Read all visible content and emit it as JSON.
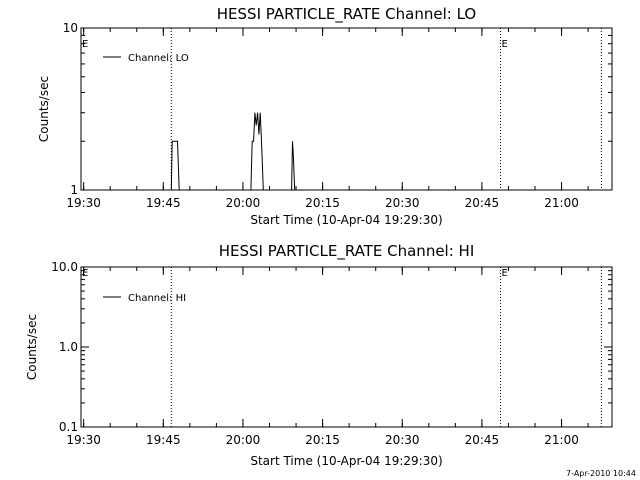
{
  "footer": {
    "timestamp": "7-Apr-2010 10:44"
  },
  "chart_data": [
    {
      "type": "line",
      "title": "HESSI PARTICLE_RATE Channel: LO",
      "xlabel": "Start Time (10-Apr-04 19:29:30)",
      "ylabel": "Counts/sec",
      "yscale": "log",
      "ylim": [
        1,
        10
      ],
      "xlim": [
        "19:29:30",
        "21:09:30"
      ],
      "x_ticks": [
        "19:30",
        "19:45",
        "20:00",
        "20:15",
        "20:30",
        "20:45",
        "21:00"
      ],
      "y_ticks": [
        "1",
        "10"
      ],
      "legend": {
        "position": "top-left",
        "entries": [
          "Channel: LO"
        ]
      },
      "annotations": [
        {
          "text": "E",
          "x": "19:29:30"
        },
        {
          "text": "E",
          "x": "20:48:30"
        }
      ],
      "vlines": [
        "19:46:30",
        "20:48:30",
        "21:07:30"
      ],
      "series": [
        {
          "name": "Channel: LO",
          "points": [
            [
              "19:46:30",
              1
            ],
            [
              "19:46:40",
              2
            ],
            [
              "19:47:40",
              2
            ],
            [
              "19:48:00",
              1
            ],
            [
              "20:01:30",
              1
            ],
            [
              "20:01:45",
              2
            ],
            [
              "20:02:00",
              2
            ],
            [
              "20:02:15",
              3
            ],
            [
              "20:02:30",
              2.5
            ],
            [
              "20:02:45",
              3
            ],
            [
              "20:03:00",
              2.2
            ],
            [
              "20:03:15",
              3
            ],
            [
              "20:03:30",
              2
            ],
            [
              "20:03:50",
              1
            ],
            [
              "20:09:10",
              1
            ],
            [
              "20:09:20",
              2
            ],
            [
              "20:09:30",
              1.6
            ],
            [
              "20:09:45",
              1
            ]
          ]
        }
      ]
    },
    {
      "type": "line",
      "title": "HESSI PARTICLE_RATE Channel: HI",
      "xlabel": "Start Time (10-Apr-04 19:29:30)",
      "ylabel": "Counts/sec",
      "yscale": "log",
      "ylim": [
        0.1,
        10
      ],
      "xlim": [
        "19:29:30",
        "21:09:30"
      ],
      "x_ticks": [
        "19:30",
        "19:45",
        "20:00",
        "20:15",
        "20:30",
        "20:45",
        "21:00"
      ],
      "y_ticks": [
        "0.1",
        "1.0",
        "10.0"
      ],
      "legend": {
        "position": "top-left",
        "entries": [
          "Channel: HI"
        ]
      },
      "annotations": [
        {
          "text": "E",
          "x": "19:29:30"
        },
        {
          "text": "E",
          "x": "20:48:30"
        }
      ],
      "vlines": [
        "19:46:30",
        "20:48:30",
        "21:07:30"
      ],
      "series": [
        {
          "name": "Channel: HI",
          "points": []
        }
      ]
    }
  ]
}
